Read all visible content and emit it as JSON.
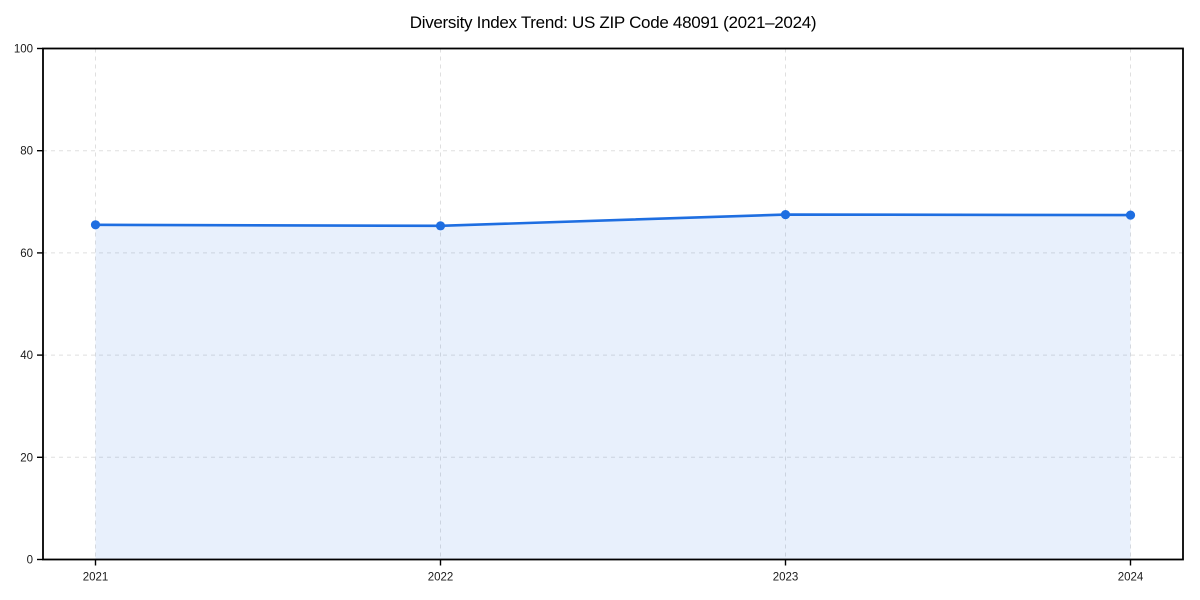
{
  "chart_data": {
    "type": "area",
    "title": "Diversity Index Trend: US ZIP Code 48091 (2021–2024)",
    "x": [
      2021,
      2022,
      2023,
      2024
    ],
    "xticklabels": [
      "2021",
      "2022",
      "2023",
      "2024"
    ],
    "series": [
      {
        "name": "Diversity Index",
        "values": [
          65.5,
          65.3,
          67.5,
          67.4
        ]
      }
    ],
    "xlabel": "",
    "ylabel": "",
    "ylim": [
      0,
      100
    ],
    "yticks": [
      0,
      20,
      40,
      60,
      80,
      100
    ],
    "grid": true,
    "grid_style": "dashed",
    "legend": false,
    "marker": "circle",
    "colors": {
      "line": "#1e6ee1",
      "marker": "#1e6ee1",
      "fill": "rgba(30, 110, 225, 0.10)",
      "grid": "#dfdfdf",
      "axis": "#000000",
      "tick_text": "#1a1a1a",
      "background": "#ffffff"
    }
  }
}
